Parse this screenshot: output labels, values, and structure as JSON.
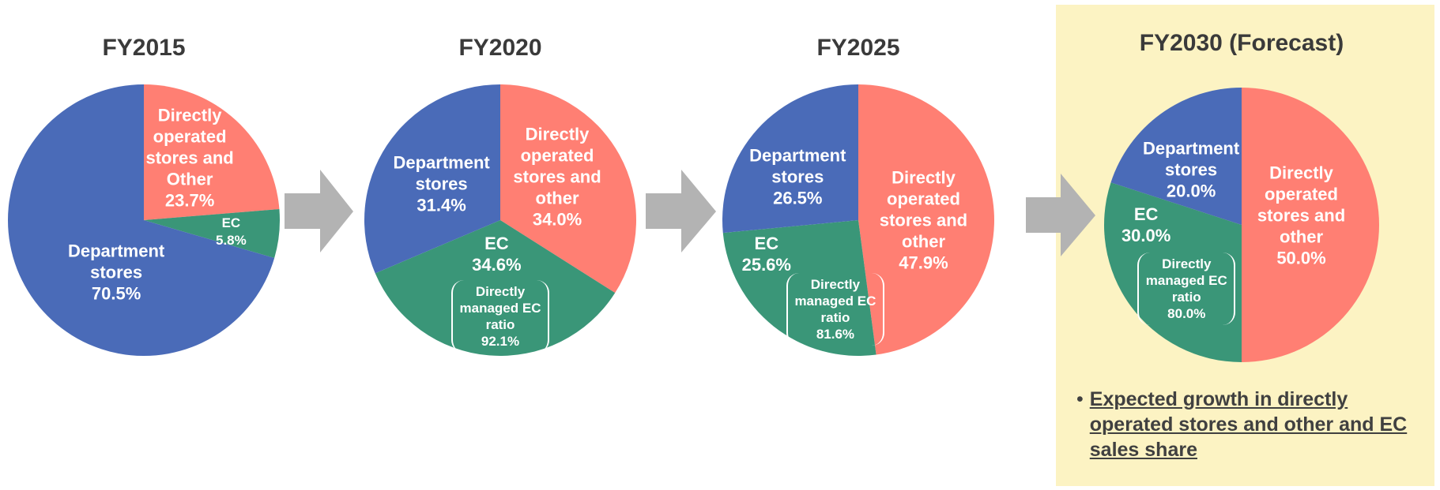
{
  "chart_data": [
    {
      "type": "pie",
      "title": "FY2015",
      "categories": [
        "Directly operated stores and Other",
        "EC",
        "Department stores"
      ],
      "values": [
        23.7,
        5.8,
        70.5
      ],
      "value_labels": [
        "23.7%",
        "5.8%",
        "70.5%"
      ],
      "colors": [
        "#ff7f73",
        "#3a9678",
        "#4a6bb8"
      ]
    },
    {
      "type": "pie",
      "title": "FY2020",
      "categories": [
        "Directly operated stores and other",
        "EC",
        "Department stores"
      ],
      "values": [
        34.0,
        34.6,
        31.4
      ],
      "value_labels": [
        "34.0%",
        "34.6%",
        "31.4%"
      ],
      "colors": [
        "#ff7f73",
        "#3a9678",
        "#4a6bb8"
      ],
      "annotation": {
        "text": "Directly managed EC ratio",
        "value": "92.1%"
      }
    },
    {
      "type": "pie",
      "title": "FY2025",
      "categories": [
        "Directly operated stores and other",
        "EC",
        "Department stores"
      ],
      "values": [
        47.9,
        25.6,
        26.5
      ],
      "value_labels": [
        "47.9%",
        "25.6%",
        "26.5%"
      ],
      "colors": [
        "#ff7f73",
        "#3a9678",
        "#4a6bb8"
      ],
      "annotation": {
        "text": "Directly managed EC ratio",
        "value": "81.6%"
      }
    },
    {
      "type": "pie",
      "title": "FY2030 (Forecast)",
      "categories": [
        "Directly operated stores and other",
        "EC",
        "Department stores"
      ],
      "values": [
        50.0,
        30.0,
        20.0
      ],
      "value_labels": [
        "50.0%",
        "30.0%",
        "20.0%"
      ],
      "colors": [
        "#ff7f73",
        "#3a9678",
        "#4a6bb8"
      ],
      "annotation": {
        "text": "Directly managed EC ratio",
        "value": "80.0%"
      }
    }
  ],
  "note": "Expected growth in directly operated stores and other and EC sales share"
}
